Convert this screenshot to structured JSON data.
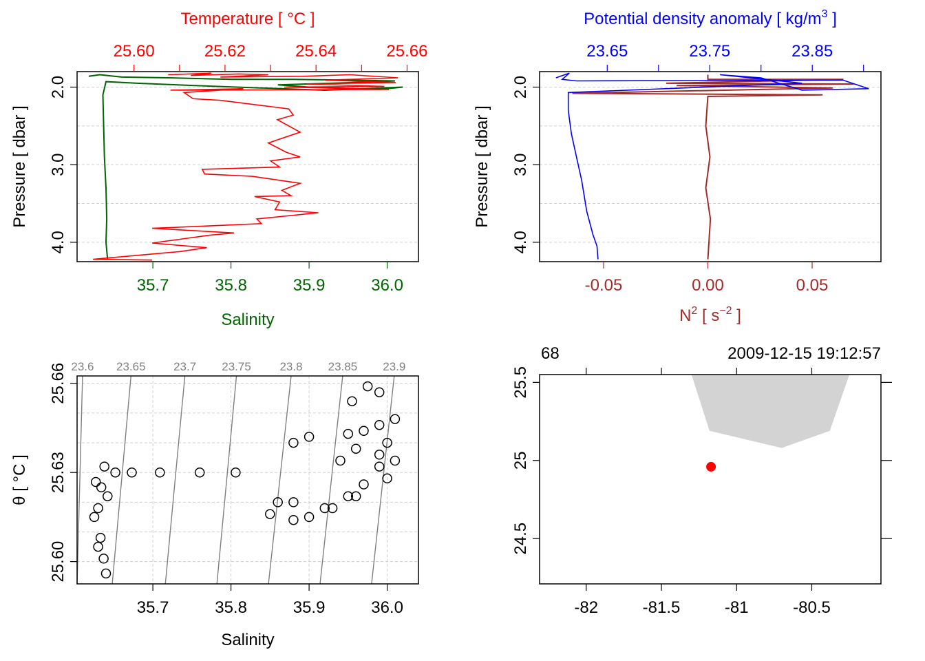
{
  "colors": {
    "temperature": "#ff0000",
    "salinity": "#006400",
    "density": "#0000ff",
    "n2": "#a52a2a",
    "isopycnal": "#808080",
    "coastline_fill": "#d3d3d3",
    "station": "#ff0000",
    "frame": "#000000",
    "grid": "#cfcfcf"
  },
  "chart_data": [
    {
      "panel": "temperature-salinity-profile",
      "type": "line",
      "title": "Temperature [ °C ]",
      "xlabel": "Salinity",
      "ylabel": "Pressure [ dbar ]",
      "top_axis": {
        "label": "Temperature [ °C ]",
        "ticks": [
          "25.60",
          "25.62",
          "25.64",
          "25.66"
        ],
        "range": [
          25.5875,
          25.6625
        ],
        "minor_ticks": [
          25.61,
          25.63,
          25.65
        ]
      },
      "bottom_axis": {
        "label": "Salinity",
        "ticks": [
          "35.7",
          "35.8",
          "35.9",
          "36.0"
        ],
        "range": [
          35.603,
          36.04
        ]
      },
      "y_axis": {
        "ticks": [
          "2.0",
          "3.0",
          "4.0"
        ],
        "range": [
          4.25,
          1.8
        ],
        "reversed": true
      },
      "grid": true,
      "series": [
        {
          "name": "Temperature",
          "color": "temperature",
          "points": [
            [
              25.6075,
              1.84
            ],
            [
              25.617,
              1.82
            ],
            [
              25.6125,
              1.85
            ],
            [
              25.623,
              1.83
            ],
            [
              25.6295,
              1.84
            ],
            [
              25.619,
              1.87
            ],
            [
              25.637,
              1.86
            ],
            [
              25.6475,
              1.84
            ],
            [
              25.658,
              1.88
            ],
            [
              25.642,
              1.91
            ],
            [
              25.6575,
              1.94
            ],
            [
              25.638,
              1.96
            ],
            [
              25.655,
              1.99
            ],
            [
              25.633,
              2.0
            ],
            [
              25.656,
              2.03
            ],
            [
              25.608,
              2.04
            ],
            [
              25.624,
              2.02
            ],
            [
              25.611,
              2.07
            ],
            [
              25.613,
              2.15
            ],
            [
              25.619,
              2.17
            ],
            [
              25.634,
              2.28
            ],
            [
              25.635,
              2.36
            ],
            [
              25.6315,
              2.42
            ],
            [
              25.6365,
              2.58
            ],
            [
              25.6295,
              2.72
            ],
            [
              25.6335,
              2.84
            ],
            [
              25.6365,
              2.9
            ],
            [
              25.63,
              2.95
            ],
            [
              25.632,
              3.03
            ],
            [
              25.615,
              3.06
            ],
            [
              25.6155,
              3.12
            ],
            [
              25.626,
              3.15
            ],
            [
              25.633,
              3.21
            ],
            [
              25.6365,
              3.24
            ],
            [
              25.6325,
              3.33
            ],
            [
              25.6345,
              3.4
            ],
            [
              25.6265,
              3.41
            ],
            [
              25.632,
              3.48
            ],
            [
              25.631,
              3.58
            ],
            [
              25.6405,
              3.62
            ],
            [
              25.627,
              3.7
            ],
            [
              25.628,
              3.76
            ],
            [
              25.604,
              3.82
            ],
            [
              25.622,
              3.88
            ],
            [
              25.6165,
              3.91
            ],
            [
              25.604,
              4.01
            ],
            [
              25.616,
              4.07
            ],
            [
              25.61,
              4.12
            ],
            [
              25.591,
              4.22
            ],
            [
              25.604,
              4.23
            ]
          ]
        },
        {
          "name": "Salinity",
          "color": "salinity",
          "points": [
            [
              35.618,
              1.86
            ],
            [
              35.632,
              1.84
            ],
            [
              35.66,
              1.87
            ],
            [
              35.72,
              1.88
            ],
            [
              35.8,
              1.9
            ],
            [
              35.88,
              1.9
            ],
            [
              35.95,
              1.91
            ],
            [
              36.01,
              1.92
            ],
            [
              35.96,
              1.94
            ],
            [
              35.86,
              1.97
            ],
            [
              35.9,
              2.0
            ],
            [
              35.99,
              2.03
            ],
            [
              36.02,
              2.0
            ],
            [
              35.92,
              2.04
            ],
            [
              35.78,
              1.99
            ],
            [
              35.68,
              1.95
            ],
            [
              35.64,
              1.93
            ],
            [
              35.636,
              2.1
            ],
            [
              35.637,
              2.5
            ],
            [
              35.638,
              2.9
            ],
            [
              35.64,
              3.3
            ],
            [
              35.641,
              3.7
            ],
            [
              35.64,
              4.0
            ],
            [
              35.642,
              4.22
            ]
          ]
        }
      ]
    },
    {
      "panel": "density-n2-profile",
      "type": "line",
      "title": "Potential density anomaly [ kg/m3 ]",
      "xlabel": "N2 [ s-2 ]",
      "ylabel": "Pressure [ dbar ]",
      "top_axis": {
        "label": "Potential density anomaly [ kg/m3 ]",
        "ticks": [
          "23.65",
          "23.75",
          "23.85"
        ],
        "range": [
          23.584,
          23.917
        ],
        "minor_ticks": [
          23.7,
          23.8,
          23.9
        ]
      },
      "bottom_axis": {
        "label": "N2 [ s-2 ]",
        "ticks": [
          "-0.05",
          "0.00",
          "0.05"
        ],
        "range": [
          -0.0807,
          0.083
        ]
      },
      "y_axis": {
        "ticks": [
          "2.0",
          "3.0",
          "4.0"
        ],
        "range": [
          4.25,
          1.8
        ],
        "reversed": true
      },
      "grid": true,
      "series": [
        {
          "name": "Potential density anomaly",
          "color": "density",
          "points": [
            [
              23.6,
              1.88
            ],
            [
              23.613,
              1.82
            ],
            [
              23.606,
              1.9
            ],
            [
              23.62,
              1.92
            ],
            [
              23.88,
              1.91
            ],
            [
              23.905,
              2.02
            ],
            [
              23.84,
              2.04
            ],
            [
              23.8,
              1.88
            ],
            [
              23.76,
              1.84
            ],
            [
              23.84,
              1.95
            ],
            [
              23.612,
              2.07
            ],
            [
              23.612,
              2.3
            ],
            [
              23.615,
              2.6
            ],
            [
              23.62,
              2.9
            ],
            [
              23.625,
              3.2
            ],
            [
              23.63,
              3.6
            ],
            [
              23.636,
              3.9
            ],
            [
              23.64,
              4.05
            ],
            [
              23.641,
              4.22
            ]
          ]
        },
        {
          "name": "N2",
          "color": "n2",
          "points": [
            [
              0.0,
              1.84
            ],
            [
              0.0,
              1.9
            ],
            [
              0.065,
              1.9
            ],
            [
              -0.02,
              1.95
            ],
            [
              0.07,
              1.96
            ],
            [
              -0.015,
              1.98
            ],
            [
              0.06,
              2.01
            ],
            [
              -0.065,
              2.08
            ],
            [
              0.055,
              2.1
            ],
            [
              0.0,
              2.12
            ],
            [
              -0.001,
              2.5
            ],
            [
              0.001,
              2.9
            ],
            [
              -0.001,
              3.3
            ],
            [
              0.0012,
              3.7
            ],
            [
              0.0,
              4.22
            ]
          ]
        }
      ]
    },
    {
      "panel": "theta-salinity",
      "type": "scatter",
      "xlabel": "Salinity",
      "ylabel": "θ [ °C ]",
      "x_axis": {
        "ticks": [
          "35.7",
          "35.8",
          "35.9",
          "36.0"
        ],
        "range": [
          35.603,
          36.04
        ]
      },
      "y_axis": {
        "ticks": [
          "25.60",
          "25.63",
          "25.66"
        ],
        "range": [
          25.5925,
          25.6625
        ],
        "grid_values": [
          25.6,
          25.61,
          25.62,
          25.63,
          25.64,
          25.65,
          25.66
        ]
      },
      "isopycnal_labels": [
        "23.6",
        "23.65",
        "23.7",
        "23.75",
        "23.8",
        "23.85",
        "23.9"
      ],
      "isopycnals": [
        {
          "label": "23.6",
          "salinity_top": 35.61,
          "salinity_bottom": 35.603
        },
        {
          "label": "23.65",
          "salinity_top": 35.672,
          "salinity_bottom": 35.648
        },
        {
          "label": "23.7",
          "salinity_top": 35.741,
          "salinity_bottom": 35.716
        },
        {
          "label": "23.75",
          "salinity_top": 35.807,
          "salinity_bottom": 35.782
        },
        {
          "label": "23.8",
          "salinity_top": 35.877,
          "salinity_bottom": 35.848
        },
        {
          "label": "23.85",
          "salinity_top": 35.943,
          "salinity_bottom": 35.914
        },
        {
          "label": "23.9",
          "salinity_top": 36.009,
          "salinity_bottom": 35.98
        }
      ],
      "points": [
        [
          35.627,
          25.6268
        ],
        [
          35.63,
          25.618
        ],
        [
          35.633,
          25.608
        ],
        [
          35.637,
          25.601
        ],
        [
          35.64,
          25.596
        ],
        [
          35.642,
          25.622
        ],
        [
          35.638,
          25.632
        ],
        [
          35.634,
          25.625
        ],
        [
          35.625,
          25.615
        ],
        [
          35.63,
          25.605
        ],
        [
          35.652,
          25.63
        ],
        [
          35.673,
          25.63
        ],
        [
          35.709,
          25.63
        ],
        [
          35.76,
          25.63
        ],
        [
          35.806,
          25.63
        ],
        [
          35.86,
          25.62
        ],
        [
          35.88,
          25.62
        ],
        [
          35.85,
          25.616
        ],
        [
          35.88,
          25.614
        ],
        [
          35.9,
          25.615
        ],
        [
          35.92,
          25.618
        ],
        [
          35.95,
          25.622
        ],
        [
          35.97,
          25.626
        ],
        [
          35.99,
          25.632
        ],
        [
          36.0,
          25.628
        ],
        [
          35.99,
          25.636
        ],
        [
          36.01,
          25.634
        ],
        [
          35.94,
          25.634
        ],
        [
          35.96,
          25.638
        ],
        [
          35.88,
          25.64
        ],
        [
          35.9,
          25.642
        ],
        [
          35.95,
          25.643
        ],
        [
          35.97,
          25.644
        ],
        [
          35.99,
          25.646
        ],
        [
          36.0,
          25.64
        ],
        [
          35.955,
          25.654
        ],
        [
          35.975,
          25.659
        ],
        [
          35.99,
          25.657
        ],
        [
          36.01,
          25.648
        ],
        [
          35.93,
          25.618
        ],
        [
          35.96,
          25.622
        ]
      ]
    },
    {
      "panel": "station-map",
      "type": "scatter",
      "top_left_label": "68",
      "top_right_label": "2009-12-15 19:12:57",
      "x_axis": {
        "ticks": [
          "-82",
          "-81.5",
          "-81",
          "-80.5"
        ],
        "range": [
          -82.31,
          -80.04
        ]
      },
      "y_axis": {
        "ticks": [
          "24.5",
          "25",
          "25.5"
        ],
        "range": [
          24.21,
          25.55
        ]
      },
      "coastline": [
        [
          -81.3,
          25.55
        ],
        [
          -81.18,
          25.19
        ],
        [
          -80.7,
          25.08
        ],
        [
          -80.38,
          25.19
        ],
        [
          -80.25,
          25.55
        ]
      ],
      "station": {
        "longitude": -81.17,
        "latitude": 24.96
      }
    }
  ]
}
